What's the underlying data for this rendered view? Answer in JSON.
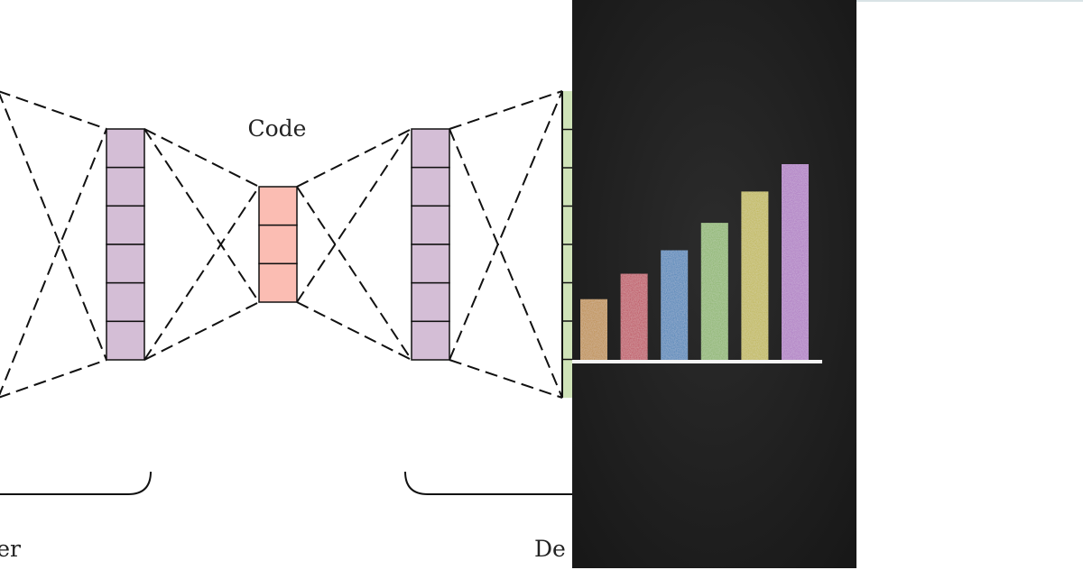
{
  "diagram": {
    "code_label": "Code",
    "encoder_label_fragment": "er",
    "decoder_label_fragment": "De",
    "colors": {
      "encoder_layer": "#d4bed6",
      "code_layer": "#fbbdb3",
      "output_layer": "#cfe3b8",
      "lines": "#111111"
    },
    "layers": [
      {
        "name": "encoder-hidden",
        "units": 6
      },
      {
        "name": "code",
        "units": 3
      },
      {
        "name": "decoder-hidden",
        "units": 6
      }
    ]
  },
  "chalkboard": {
    "background": "#232323",
    "baseline_color": "#f4f4f4",
    "bars": [
      {
        "color": "#c9923e",
        "relative_height": 0.31
      },
      {
        "color": "#c9475b",
        "relative_height": 0.44
      },
      {
        "color": "#3f86c2",
        "relative_height": 0.56
      },
      {
        "color": "#8fbf6a",
        "relative_height": 0.7
      },
      {
        "color": "#cbc14a",
        "relative_height": 0.86
      },
      {
        "color": "#b77ccf",
        "relative_height": 1.0
      }
    ]
  }
}
